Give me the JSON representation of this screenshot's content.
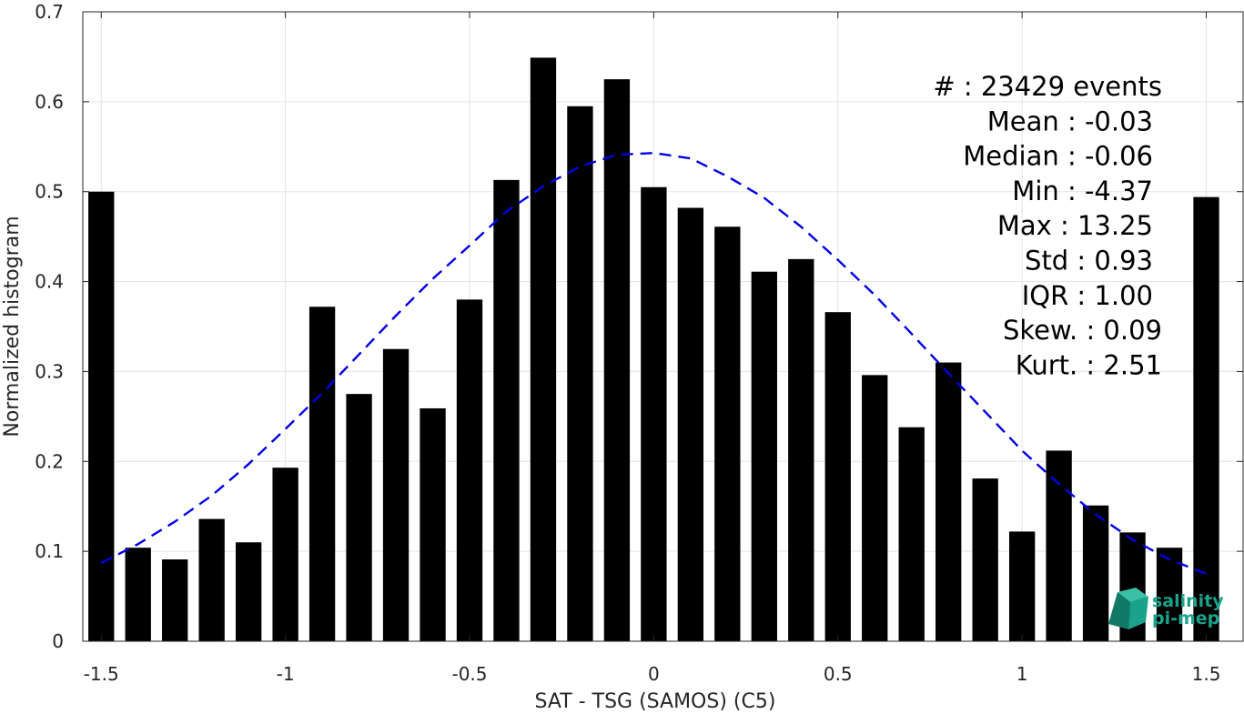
{
  "chart_data": {
    "type": "bar",
    "xlabel": "SAT - TSG (SAMOS) (C5)",
    "ylabel": "Normalized histogram",
    "xlim": [
      -1.55,
      1.6
    ],
    "ylim": [
      0,
      0.7
    ],
    "x_ticks": [
      -1.5,
      -1,
      -0.5,
      0,
      0.5,
      1,
      1.5
    ],
    "x_tick_labels": [
      "-1.5",
      "-1",
      "-0.5",
      "0",
      "0.5",
      "1",
      "1.5"
    ],
    "y_ticks": [
      0,
      0.1,
      0.2,
      0.3,
      0.4,
      0.5,
      0.6,
      0.7
    ],
    "y_tick_labels": [
      "0",
      "0.1",
      "0.2",
      "0.3",
      "0.4",
      "0.5",
      "0.6",
      "0.7"
    ],
    "grid": true,
    "x": [
      -1.5,
      -1.4,
      -1.3,
      -1.2,
      -1.1,
      -1.0,
      -0.9,
      -0.8,
      -0.7,
      -0.6,
      -0.5,
      -0.4,
      -0.3,
      -0.2,
      -0.1,
      0.0,
      0.1,
      0.2,
      0.3,
      0.4,
      0.5,
      0.6,
      0.7,
      0.8,
      0.9,
      1.0,
      1.1,
      1.2,
      1.3,
      1.4,
      1.5
    ],
    "values": [
      0.5,
      0.104,
      0.091,
      0.136,
      0.11,
      0.193,
      0.372,
      0.275,
      0.325,
      0.259,
      0.38,
      0.513,
      0.649,
      0.595,
      0.625,
      0.505,
      0.482,
      0.461,
      0.411,
      0.425,
      0.366,
      0.296,
      0.238,
      0.31,
      0.181,
      0.122,
      0.212,
      0.151,
      0.121,
      0.104,
      0.494
    ],
    "bar_color": "#000000",
    "fit_curve": {
      "style": "dashed",
      "color": "#0000e6",
      "x": [
        -1.5,
        -1.4,
        -1.3,
        -1.2,
        -1.1,
        -1.0,
        -0.9,
        -0.8,
        -0.7,
        -0.6,
        -0.5,
        -0.4,
        -0.3,
        -0.2,
        -0.1,
        0.0,
        0.1,
        0.2,
        0.3,
        0.4,
        0.5,
        0.6,
        0.7,
        0.8,
        0.9,
        1.0,
        1.1,
        1.2,
        1.3,
        1.4,
        1.5
      ],
      "values": [
        0.087,
        0.108,
        0.133,
        0.162,
        0.197,
        0.236,
        0.276,
        0.319,
        0.362,
        0.403,
        0.44,
        0.478,
        0.506,
        0.528,
        0.541,
        0.543,
        0.537,
        0.517,
        0.493,
        0.461,
        0.424,
        0.385,
        0.342,
        0.298,
        0.255,
        0.212,
        0.175,
        0.141,
        0.113,
        0.091,
        0.075
      ]
    },
    "stats": [
      "#  : 23429 events",
      "Mean : -0.03",
      "Median : -0.06",
      "Min : -4.37",
      "Max : 13.25",
      "Std : 0.93",
      "IQR : 1.00",
      "Skew. : 0.09",
      "Kurt. : 2.51"
    ]
  },
  "logo": {
    "line1": "salinity",
    "line2": "pi-mep",
    "color": "#1aa38c"
  }
}
